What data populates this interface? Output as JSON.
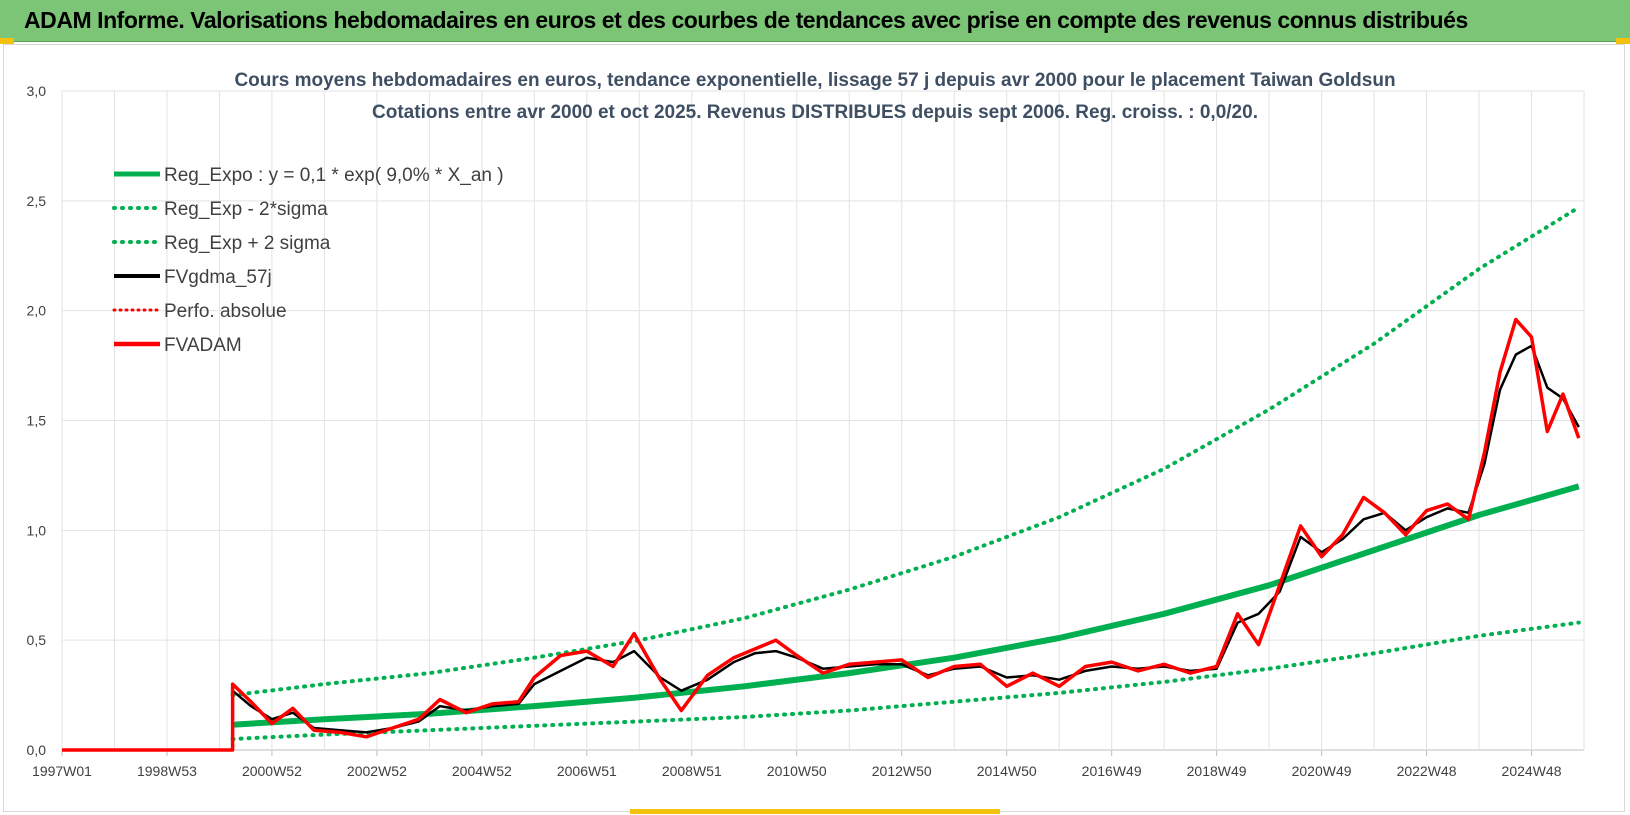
{
  "banner": {
    "title": "ADAM Informe. Valorisations hebdomadaires en euros et des courbes de tendances avec prise en compte des revenus connus distribués"
  },
  "chart_data": {
    "type": "line",
    "title": "Cours moyens hebdomadaires en euros, tendance exponentielle, lissage 57 j depuis avr 2000 pour le placement Taiwan Goldsun",
    "subtitle": "Cotations entre avr 2000 et oct 2025. Revenus DISTRIBUES depuis sept 2006. Reg. croiss. : 0,0/20.",
    "xlabel": "",
    "ylabel": "",
    "x_ticks": [
      "1997W01",
      "1998W53",
      "2000W52",
      "2002W52",
      "2004W52",
      "2006W51",
      "2008W51",
      "2010W50",
      "2012W50",
      "2014W50",
      "2016W49",
      "2018W49",
      "2020W49",
      "2022W48",
      "2024W48"
    ],
    "x_range": [
      1997.0,
      2026.0
    ],
    "y_ticks": [
      "0,0",
      "0,5",
      "1,0",
      "1,5",
      "2,0",
      "2,5",
      "3,0"
    ],
    "ylim": [
      0,
      3.0
    ],
    "grid": true,
    "legend_position": "top-left",
    "colors": {
      "reg_expo": "#00b050",
      "fvgdma": "#000000",
      "fvadam": "#ff0000"
    },
    "legend": [
      {
        "label": "Reg_Expo : y = 0,1 * exp( 9,0% *  X_an )",
        "style": "solid-green-thick"
      },
      {
        "label": "Reg_Exp - 2*sigma",
        "style": "dotted-green"
      },
      {
        "label": "Reg_Exp + 2 sigma",
        "style": "dotted-green"
      },
      {
        "label": "FVgdma_57j",
        "style": "solid-black"
      },
      {
        "label": "Perfo. absolue",
        "style": "dotted-red"
      },
      {
        "label": "FVADAM",
        "style": "solid-red-thick"
      }
    ],
    "series": [
      {
        "name": "Reg_Expo : y = 0,1 * exp( 9,0% *  X_an )",
        "x": [
          2000.25,
          2002.0,
          2004.0,
          2006.0,
          2008.0,
          2010.0,
          2012.0,
          2014.0,
          2016.0,
          2018.0,
          2020.0,
          2022.0,
          2024.0,
          2025.9
        ],
        "values": [
          0.115,
          0.14,
          0.165,
          0.2,
          0.24,
          0.29,
          0.35,
          0.42,
          0.51,
          0.62,
          0.75,
          0.91,
          1.07,
          1.2
        ]
      },
      {
        "name": "Reg_Exp - 2*sigma",
        "x": [
          2000.25,
          2002.0,
          2004.0,
          2006.0,
          2008.0,
          2010.0,
          2012.0,
          2014.0,
          2016.0,
          2018.0,
          2020.0,
          2022.0,
          2024.0,
          2025.9
        ],
        "values": [
          0.05,
          0.07,
          0.09,
          0.11,
          0.13,
          0.15,
          0.18,
          0.22,
          0.26,
          0.31,
          0.37,
          0.44,
          0.52,
          0.58
        ]
      },
      {
        "name": "Reg_Exp + 2 sigma",
        "x": [
          2000.25,
          2002.0,
          2004.0,
          2006.0,
          2008.0,
          2010.0,
          2012.0,
          2014.0,
          2016.0,
          2018.0,
          2020.0,
          2022.0,
          2024.0,
          2025.9
        ],
        "values": [
          0.25,
          0.3,
          0.35,
          0.42,
          0.5,
          0.6,
          0.73,
          0.88,
          1.06,
          1.28,
          1.55,
          1.85,
          2.19,
          2.47
        ]
      },
      {
        "name": "FVgdma_57j",
        "x": [
          2000.25,
          2000.6,
          2001.0,
          2001.4,
          2001.8,
          2002.3,
          2002.8,
          2003.3,
          2003.8,
          2004.2,
          2004.7,
          2005.2,
          2005.7,
          2006.0,
          2006.5,
          2007.0,
          2007.5,
          2007.9,
          2008.4,
          2008.8,
          2009.3,
          2009.8,
          2010.2,
          2010.6,
          2011.0,
          2011.5,
          2012.0,
          2012.5,
          2013.0,
          2013.5,
          2014.0,
          2014.5,
          2015.0,
          2015.5,
          2016.0,
          2016.5,
          2017.0,
          2017.5,
          2018.0,
          2018.5,
          2019.0,
          2019.4,
          2019.8,
          2020.2,
          2020.6,
          2021.0,
          2021.4,
          2021.8,
          2022.2,
          2022.6,
          2023.0,
          2023.4,
          2023.8,
          2024.1,
          2024.4,
          2024.7,
          2025.0,
          2025.3,
          2025.6,
          2025.9
        ],
        "values": [
          0.27,
          0.2,
          0.14,
          0.17,
          0.1,
          0.09,
          0.08,
          0.1,
          0.13,
          0.2,
          0.18,
          0.2,
          0.21,
          0.3,
          0.36,
          0.42,
          0.4,
          0.45,
          0.33,
          0.27,
          0.32,
          0.4,
          0.44,
          0.45,
          0.42,
          0.37,
          0.38,
          0.39,
          0.39,
          0.34,
          0.37,
          0.38,
          0.33,
          0.34,
          0.32,
          0.36,
          0.38,
          0.37,
          0.38,
          0.36,
          0.37,
          0.58,
          0.62,
          0.72,
          0.97,
          0.9,
          0.96,
          1.05,
          1.08,
          1.0,
          1.06,
          1.1,
          1.08,
          1.3,
          1.64,
          1.8,
          1.84,
          1.65,
          1.6,
          1.47
        ]
      },
      {
        "name": "FVADAM",
        "x": [
          1997.0,
          2000.25,
          2000.25,
          2000.6,
          2001.0,
          2001.4,
          2001.8,
          2002.3,
          2002.8,
          2003.3,
          2003.8,
          2004.2,
          2004.7,
          2005.2,
          2005.7,
          2006.0,
          2006.5,
          2007.0,
          2007.5,
          2007.9,
          2008.4,
          2008.8,
          2009.3,
          2009.8,
          2010.2,
          2010.6,
          2011.0,
          2011.5,
          2012.0,
          2012.5,
          2013.0,
          2013.5,
          2014.0,
          2014.5,
          2015.0,
          2015.5,
          2016.0,
          2016.5,
          2017.0,
          2017.5,
          2018.0,
          2018.5,
          2019.0,
          2019.4,
          2019.8,
          2020.2,
          2020.6,
          2021.0,
          2021.4,
          2021.8,
          2022.2,
          2022.6,
          2023.0,
          2023.4,
          2023.8,
          2024.1,
          2024.4,
          2024.7,
          2025.0,
          2025.3,
          2025.6,
          2025.9
        ],
        "values": [
          0.0,
          0.0,
          0.3,
          0.22,
          0.12,
          0.19,
          0.09,
          0.08,
          0.06,
          0.1,
          0.14,
          0.23,
          0.17,
          0.21,
          0.22,
          0.33,
          0.43,
          0.45,
          0.38,
          0.53,
          0.32,
          0.18,
          0.34,
          0.42,
          0.46,
          0.5,
          0.43,
          0.35,
          0.39,
          0.4,
          0.41,
          0.33,
          0.38,
          0.39,
          0.29,
          0.35,
          0.29,
          0.38,
          0.4,
          0.36,
          0.39,
          0.35,
          0.38,
          0.62,
          0.48,
          0.75,
          1.02,
          0.88,
          0.98,
          1.15,
          1.08,
          0.98,
          1.09,
          1.12,
          1.05,
          1.35,
          1.72,
          1.96,
          1.88,
          1.45,
          1.62,
          1.42
        ]
      }
    ]
  }
}
